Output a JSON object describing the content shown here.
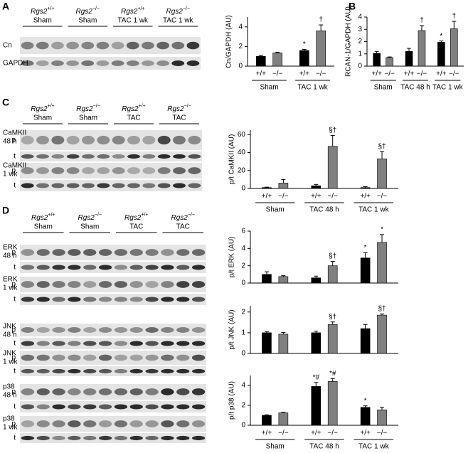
{
  "panels": [
    "A",
    "B",
    "C",
    "D"
  ],
  "blots": {
    "A": {
      "headers": [
        {
          "gene": "Rgs2",
          "genotype": "+/+",
          "condition": "Sham"
        },
        {
          "gene": "Rgs2",
          "genotype": "−/−",
          "condition": "Sham"
        },
        {
          "gene": "Rgs2",
          "genotype": "+/+",
          "condition": "TAC 1 wk"
        },
        {
          "gene": "Rgs2",
          "genotype": "−/−",
          "condition": "TAC 1 wk"
        }
      ],
      "rows": [
        {
          "label": [
            "Cn"
          ]
        },
        {
          "label": [
            "GAPDH"
          ]
        }
      ]
    },
    "C": {
      "headers": [
        {
          "gene": "Rgs2",
          "genotype": "+/+",
          "condition": "Sham"
        },
        {
          "gene": "Rgs2",
          "genotype": "−/−",
          "condition": "Sham"
        },
        {
          "gene": "Rgs2",
          "genotype": "+/+",
          "condition": "TAC"
        },
        {
          "gene": "Rgs2",
          "genotype": "−/−",
          "condition": "TAC"
        }
      ],
      "rows": [
        {
          "label": [
            "CaMKII",
            "48 h"
          ],
          "strips": [
            "p",
            "t"
          ]
        },
        {
          "label": [
            "CaMKII",
            "1 wk"
          ],
          "strips": [
            "p",
            "t"
          ]
        }
      ]
    },
    "D": {
      "headers": [
        {
          "gene": "Rgs2",
          "genotype": "+/+",
          "condition": "Sham"
        },
        {
          "gene": "Rgs2",
          "genotype": "−/−",
          "condition": "Sham"
        },
        {
          "gene": "Rgs2",
          "genotype": "+/+",
          "condition": "TAC"
        },
        {
          "gene": "Rgs2",
          "genotype": "−/−",
          "condition": "TAC"
        }
      ],
      "rows": [
        {
          "label": [
            "ERK",
            "48 h"
          ],
          "strips": [
            "p",
            "t"
          ]
        },
        {
          "label": [
            "ERK",
            "1 wk"
          ],
          "strips": [
            "p",
            "t"
          ]
        },
        {
          "label": [
            "JNK",
            "48 h"
          ],
          "strips": [
            "p",
            "t"
          ]
        },
        {
          "label": [
            "JNK",
            "1 wk"
          ],
          "strips": [
            "p",
            "t"
          ]
        },
        {
          "label": [
            "p38",
            "48 h"
          ],
          "strips": [
            "p",
            "t"
          ]
        },
        {
          "label": [
            "p38",
            "1 wk"
          ],
          "strips": [
            "p",
            "t"
          ]
        }
      ]
    }
  },
  "chart_data": [
    {
      "type": "bar",
      "ylabel": "Cn/GAPDH (AU)",
      "ylim": [
        0,
        5
      ],
      "yticks": [
        0,
        2,
        4
      ],
      "categories": [
        "+/+",
        "−/−",
        "+/+",
        "−/−"
      ],
      "groups": [
        "Sham",
        "TAC 1 wk"
      ],
      "values": [
        1.0,
        1.35,
        1.6,
        3.6
      ],
      "errors": [
        0.1,
        0.07,
        0.1,
        0.6
      ],
      "colors": [
        "#000000",
        "#808080",
        "#000000",
        "#808080"
      ],
      "annotations": [
        null,
        null,
        "*",
        "†"
      ]
    },
    {
      "type": "bar",
      "ylabel": "RCAN-1/GAPDH (AU)",
      "ylim": [
        0,
        4
      ],
      "yticks": [
        0,
        1,
        2,
        3,
        4
      ],
      "categories": [
        "+/+",
        "−/−",
        "+/+",
        "−/−",
        "+/+",
        "−/−"
      ],
      "groups": [
        "Sham",
        "TAC 48 h",
        "TAC 1 wk"
      ],
      "values": [
        1.05,
        0.7,
        1.2,
        2.9,
        1.95,
        3.05
      ],
      "errors": [
        0.15,
        0.05,
        0.25,
        0.4,
        0.1,
        0.6
      ],
      "colors": [
        "#000000",
        "#808080",
        "#000000",
        "#808080",
        "#000000",
        "#808080"
      ],
      "annotations": [
        null,
        null,
        null,
        "†",
        "*",
        "†"
      ]
    },
    {
      "type": "bar",
      "ylabel": "p/t CaMKII (AU)",
      "ylim": [
        0,
        65
      ],
      "yticks": [
        0,
        20,
        40,
        60
      ],
      "categories": [
        "+/+",
        "−/−",
        "+/+",
        "−/−",
        "+/+",
        "−/−"
      ],
      "groups": [
        "Sham",
        "TAC 48 h",
        "TAC 1 wk"
      ],
      "values": [
        1,
        6,
        3,
        47,
        1,
        33
      ],
      "errors": [
        0.5,
        4,
        1.5,
        12,
        1,
        8
      ],
      "colors": [
        "#000000",
        "#808080",
        "#000000",
        "#808080",
        "#000000",
        "#808080"
      ],
      "annotations": [
        null,
        null,
        null,
        "§†",
        null,
        "§†"
      ]
    },
    {
      "type": "bar",
      "ylabel": "p/t ERK (AU)",
      "ylim": [
        0,
        6
      ],
      "yticks": [
        0,
        2,
        4,
        6
      ],
      "values": [
        1.0,
        0.75,
        0.6,
        2.0,
        2.9,
        4.7
      ],
      "errors": [
        0.3,
        0.1,
        0.2,
        0.5,
        0.6,
        0.9
      ],
      "colors": [
        "#000000",
        "#808080",
        "#000000",
        "#808080",
        "#000000",
        "#808080"
      ],
      "annotations": [
        null,
        null,
        null,
        "§†",
        "*",
        "*"
      ]
    },
    {
      "type": "bar",
      "ylabel": "p/t JNK (AU)",
      "ylim": [
        0,
        2.3
      ],
      "yticks": [
        0,
        1,
        2
      ],
      "values": [
        1.0,
        0.93,
        1.0,
        1.4,
        1.2,
        1.85
      ],
      "errors": [
        0.06,
        0.08,
        0.07,
        0.12,
        0.2,
        0.06
      ],
      "colors": [
        "#000000",
        "#808080",
        "#000000",
        "#808080",
        "#000000",
        "#808080"
      ],
      "annotations": [
        null,
        null,
        null,
        "§†",
        null,
        "§†"
      ]
    },
    {
      "type": "bar",
      "ylabel": "p/t p38 (AU)",
      "ylim": [
        0,
        5
      ],
      "yticks": [
        0,
        2,
        4
      ],
      "categories": [
        "+/+",
        "−/−",
        "+/+",
        "−/−",
        "+/+",
        "−/−"
      ],
      "groups": [
        "Sham",
        "TAC 48 h",
        "TAC 1 wk"
      ],
      "values": [
        1.0,
        1.25,
        3.9,
        4.4,
        1.8,
        1.55
      ],
      "errors": [
        0.05,
        0.05,
        0.4,
        0.3,
        0.15,
        0.25
      ],
      "colors": [
        "#000000",
        "#808080",
        "#000000",
        "#808080",
        "#000000",
        "#808080"
      ],
      "annotations": [
        null,
        null,
        "*#",
        "*#",
        "*",
        null
      ]
    }
  ]
}
